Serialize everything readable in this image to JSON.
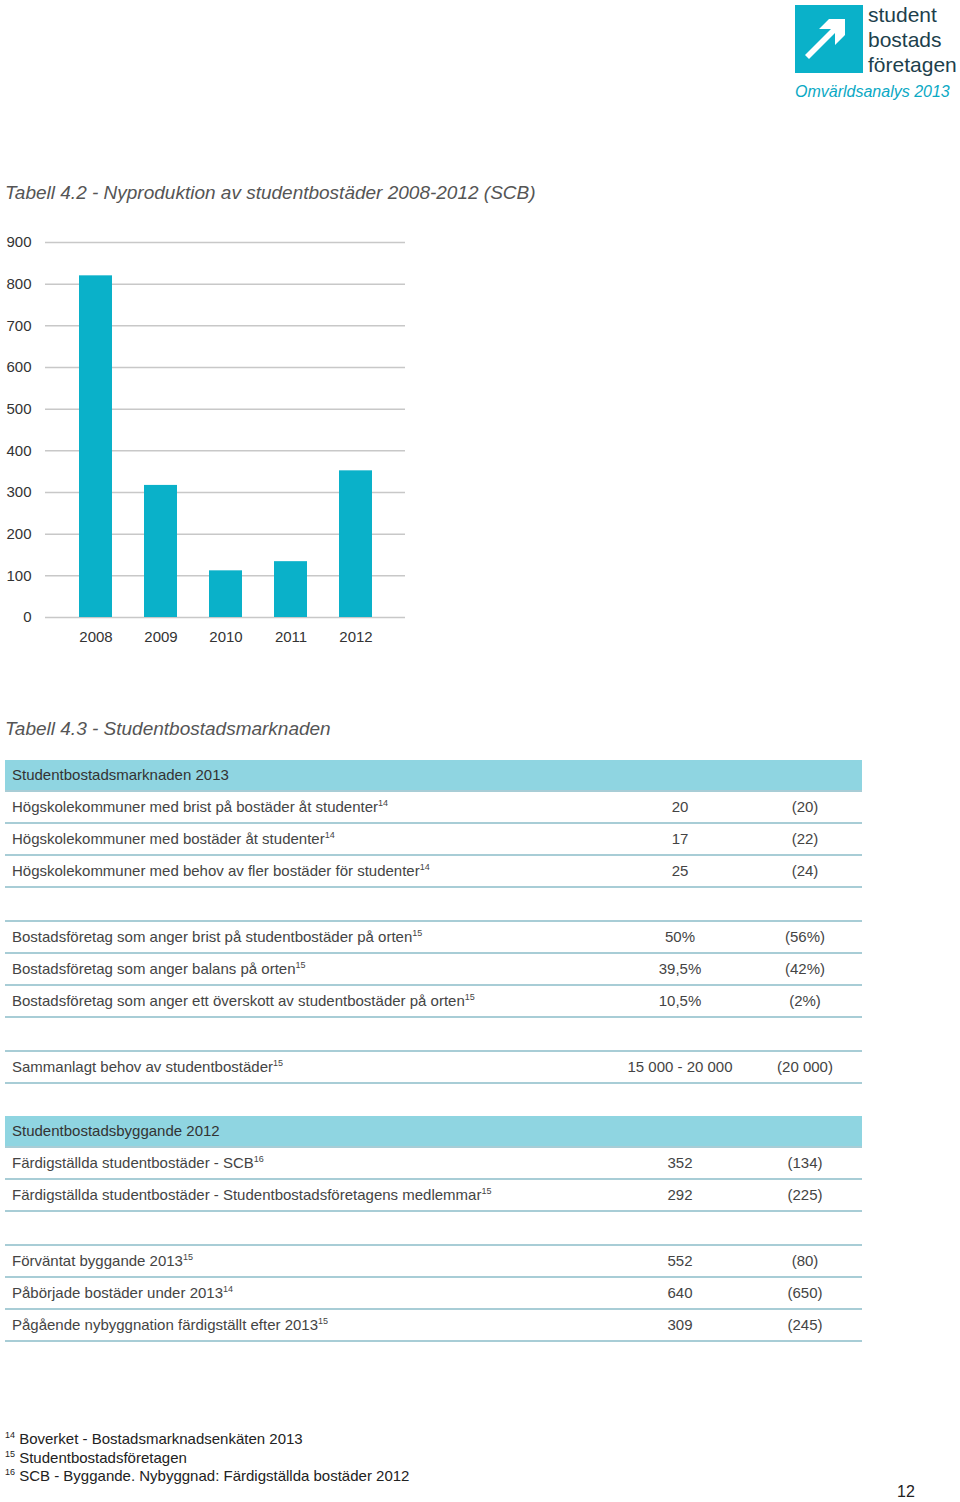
{
  "header": {
    "logo": [
      "student",
      "bostads",
      "företagen"
    ],
    "subtitle": "Omvärldsanalys 2013"
  },
  "chart_data": {
    "type": "bar",
    "title": "Tabell 4.2 - Nyproduktion av studentbostäder 2008-2012 (SCB)",
    "categories": [
      "2008",
      "2009",
      "2010",
      "2011",
      "2012"
    ],
    "values": [
      820,
      317,
      112,
      134,
      352
    ],
    "color": "#0ab1c9",
    "ylim": [
      0,
      900
    ],
    "yticks": [
      0,
      100,
      200,
      300,
      400,
      500,
      600,
      700,
      800,
      900
    ],
    "grid": true
  },
  "table": {
    "title": "Tabell 4.3 - Studentbostadsmarknaden",
    "sections": [
      {
        "header": "Studentbostadsmarknaden 2013",
        "rows": [
          {
            "label": "Högskolekommuner med brist på bostäder åt studenter",
            "note": "14",
            "value": "20",
            "previous": "(20)"
          },
          {
            "label": "Högskolekommuner med bostäder åt studenter",
            "note": "14",
            "value": "17",
            "previous": "(22)"
          },
          {
            "label": "Högskolekommuner med behov av fler bostäder för studenter",
            "note": "14",
            "value": "25",
            "previous": "(24)"
          }
        ]
      },
      {
        "rows": [
          {
            "label": "Bostadsföretag som anger brist på studentbostäder på orten",
            "note": "15",
            "value": "50%",
            "previous": "(56%)"
          },
          {
            "label": "Bostadsföretag som anger balans på orten",
            "note": "15",
            "value": "39,5%",
            "previous": "(42%)"
          },
          {
            "label": "Bostadsföretag som anger ett överskott av studentbostäder på orten",
            "note": "15",
            "value": "10,5%",
            "previous": "(2%)"
          }
        ]
      },
      {
        "rows": [
          {
            "label": "Sammanlagt behov av studentbostäder",
            "note": "15",
            "value": "15 000 - 20 000",
            "previous": "(20 000)"
          }
        ]
      },
      {
        "header": "Studentbostadsbyggande 2012",
        "rows": [
          {
            "label": "Färdigställda studentbostäder - SCB",
            "note": "16",
            "value": "352",
            "previous": "(134)"
          },
          {
            "label": "Färdigställda studentbostäder - Studentbostadsföretagens medlemmar",
            "note": "15",
            "value": "292",
            "previous": "(225)"
          }
        ]
      },
      {
        "rows": [
          {
            "label": "Förväntat byggande 2013",
            "note": "15",
            "value": "552",
            "previous": "(80)"
          },
          {
            "label": "Påbörjade bostäder under 2013",
            "note": "14",
            "value": "640",
            "previous": "(650)"
          },
          {
            "label": "Pågående nybyggnation färdigställt efter 2013",
            "note": "15",
            "value": "309",
            "previous": "(245)"
          }
        ]
      }
    ]
  },
  "footnotes": [
    {
      "mark": "14",
      "text": "Boverket - Bostadsmarknadsenkäten 2013"
    },
    {
      "mark": "15",
      "text": "Studentbostadsföretagen"
    },
    {
      "mark": "16",
      "text": "SCB -  Byggande. Nybyggnad: Färdigställda bostäder 2012"
    }
  ],
  "page_number": "12"
}
